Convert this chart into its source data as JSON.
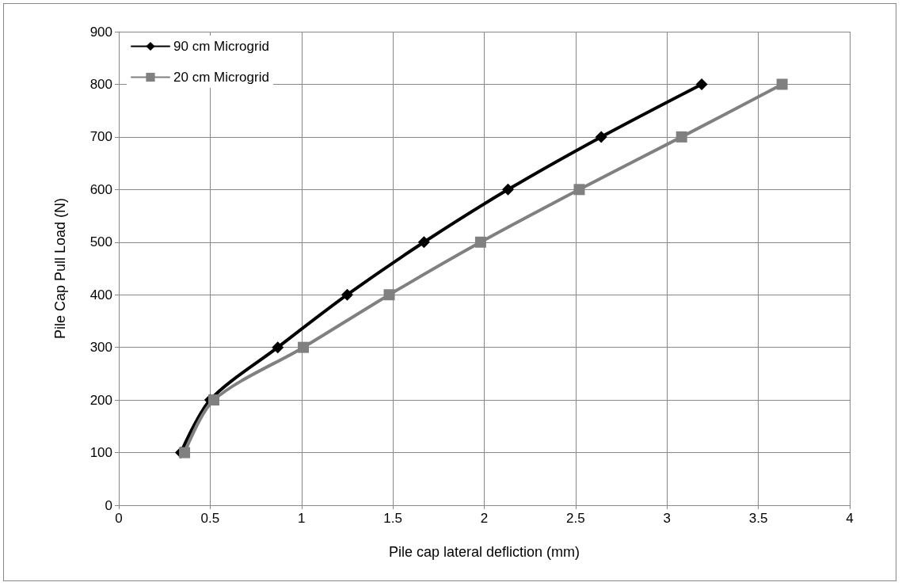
{
  "chart_data": {
    "type": "line",
    "xlabel": "Pile cap lateral defliction (mm)",
    "ylabel": "Pile Cap Pull Load (N)",
    "series": [
      {
        "name": "90 cm Microgrid",
        "color": "#000000",
        "marker": "diamond",
        "x": [
          0.34,
          0.5,
          0.87,
          1.25,
          1.67,
          2.13,
          2.64,
          3.19
        ],
        "values": [
          100,
          200,
          300,
          400,
          500,
          600,
          700,
          800
        ]
      },
      {
        "name": "20 cm Microgrid",
        "color": "#808080",
        "marker": "square",
        "x": [
          0.36,
          0.52,
          1.01,
          1.48,
          1.98,
          2.52,
          3.08,
          3.63
        ],
        "values": [
          100,
          200,
          300,
          400,
          500,
          600,
          700,
          800
        ]
      }
    ],
    "xlim": [
      0,
      4
    ],
    "xticks": [
      0,
      0.5,
      1,
      1.5,
      2,
      2.5,
      3,
      3.5,
      4
    ],
    "ylim": [
      0,
      900
    ],
    "yticks": [
      0,
      100,
      200,
      300,
      400,
      500,
      600,
      700,
      800,
      900
    ],
    "grid": true,
    "legend": "top left",
    "line_style": "solid"
  }
}
